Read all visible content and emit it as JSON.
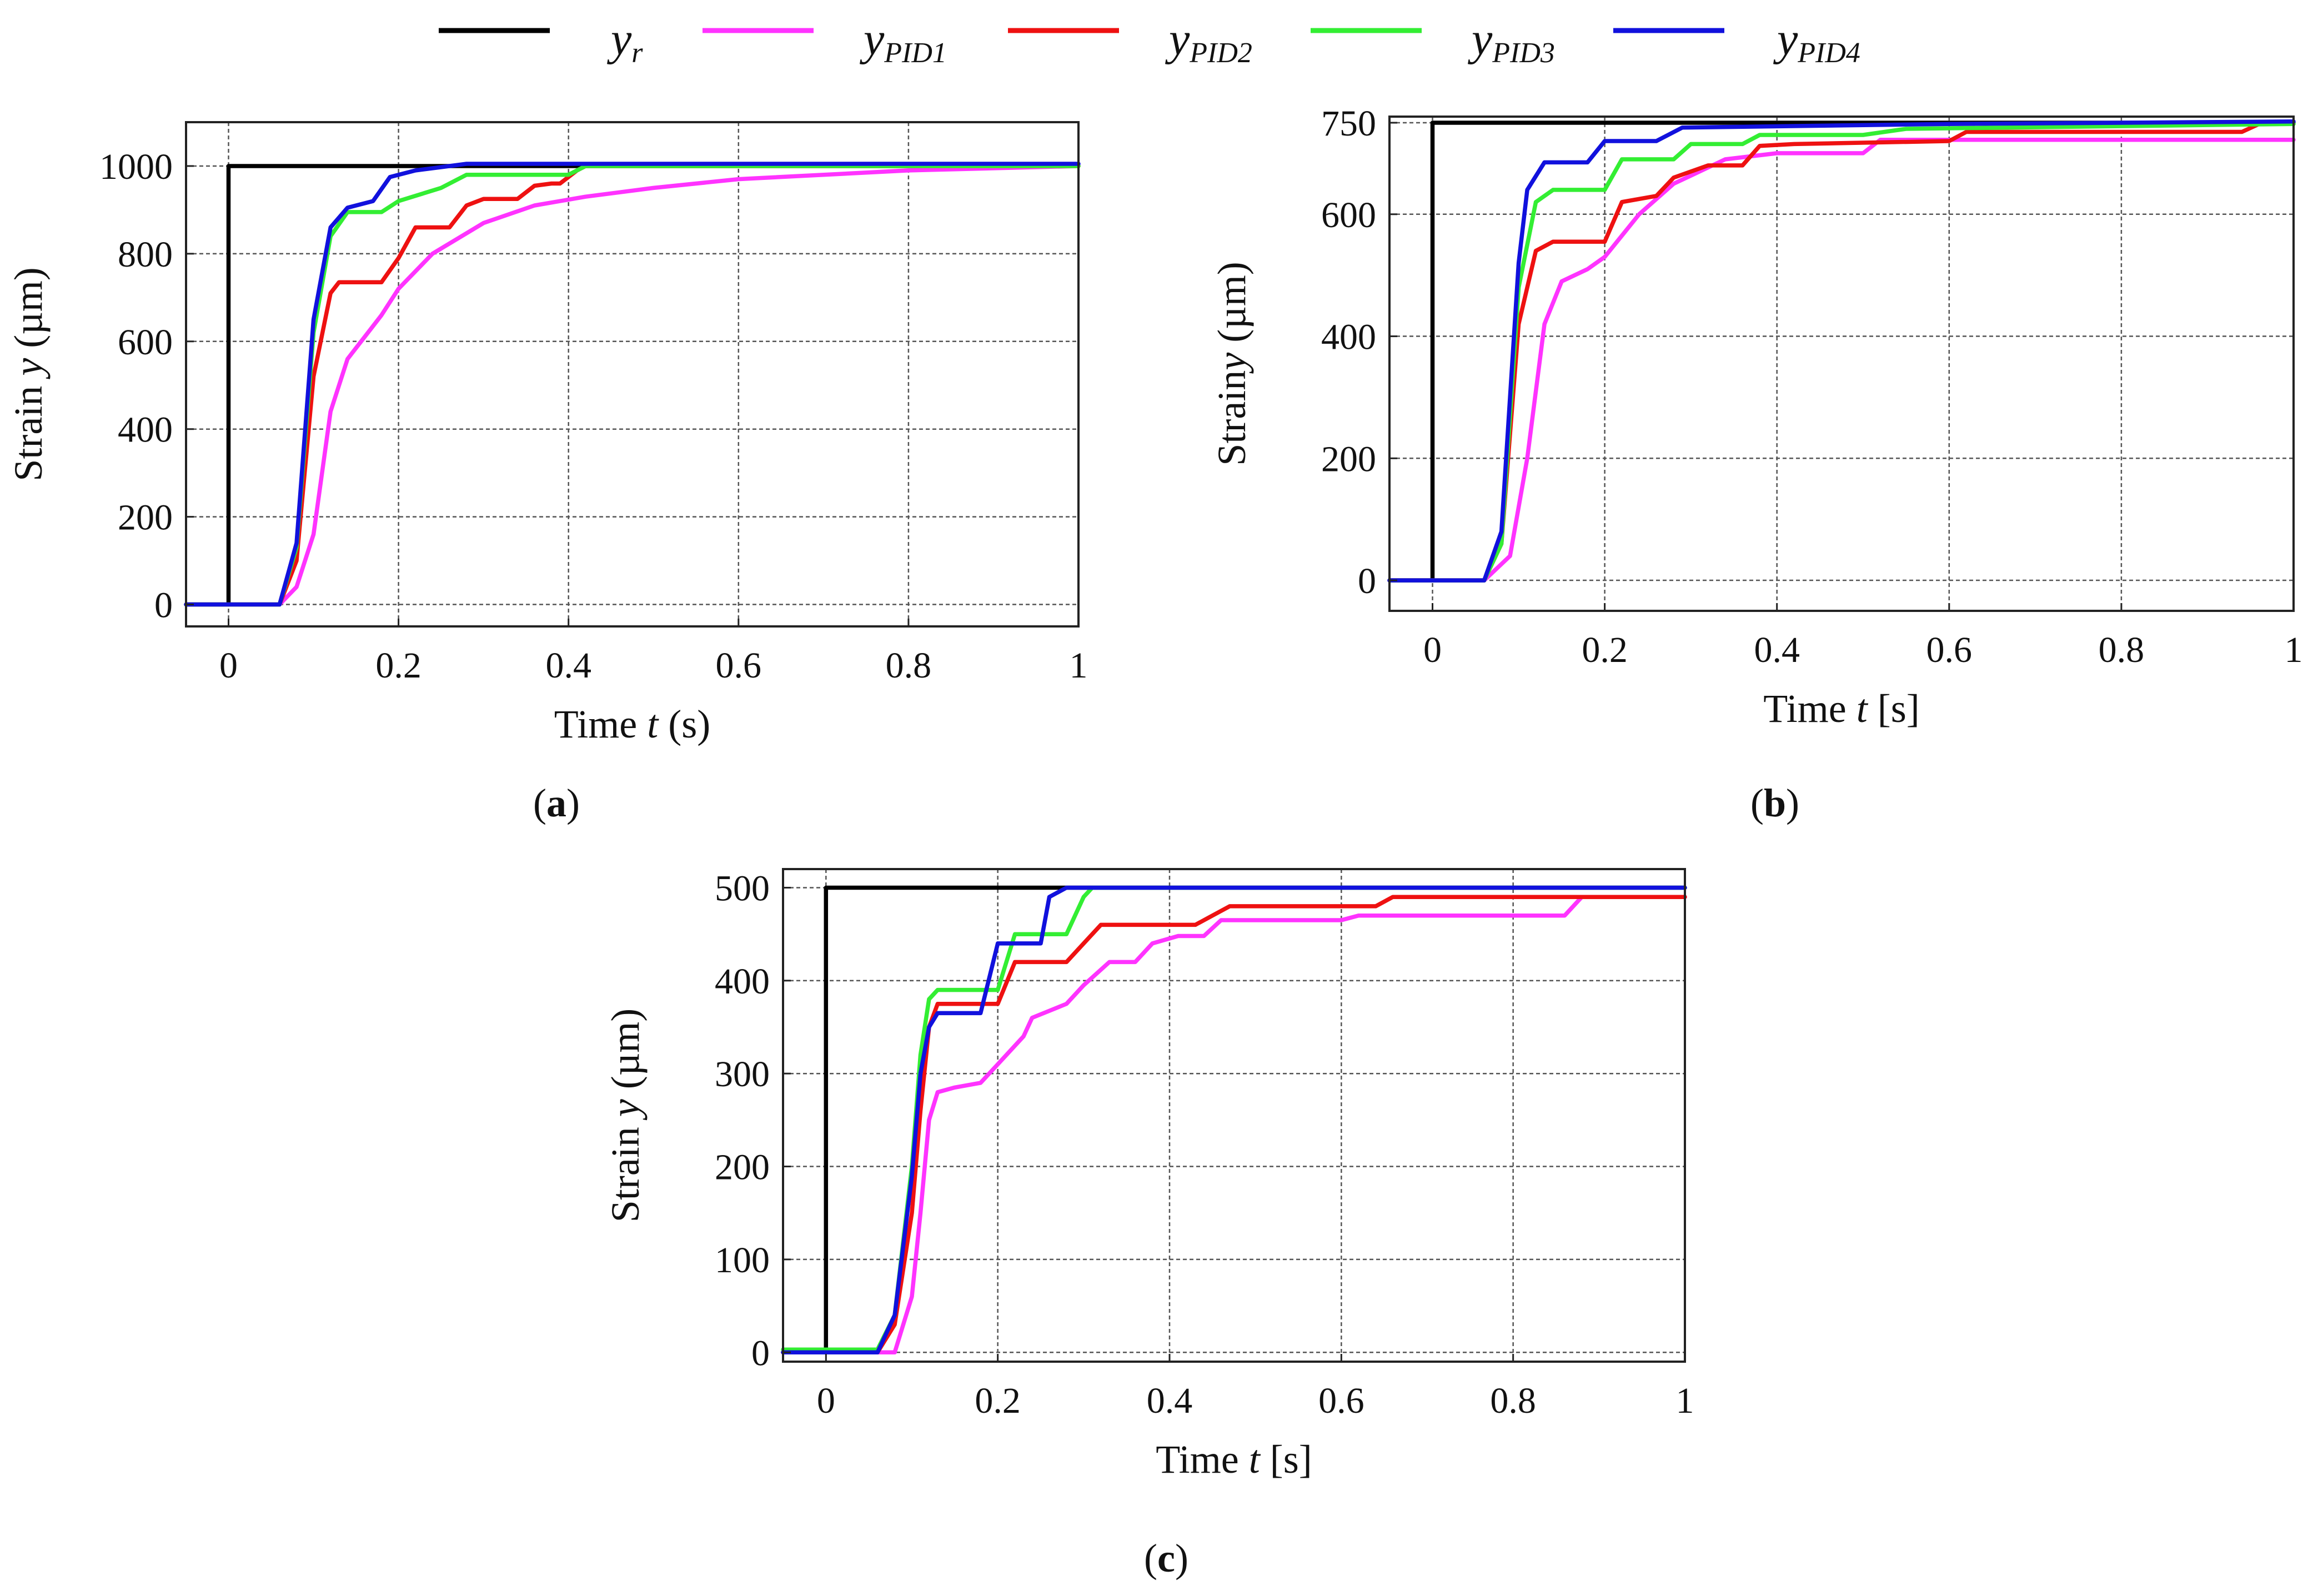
{
  "legend": [
    {
      "base": "y",
      "sub": "r",
      "color": "#000000"
    },
    {
      "base": "y",
      "sub": "PID1",
      "color": "#ff33ff"
    },
    {
      "base": "y",
      "sub": "PID2",
      "color": "#ee1111"
    },
    {
      "base": "y",
      "sub": "PID3",
      "color": "#33ee33"
    },
    {
      "base": "y",
      "sub": "PID4",
      "color": "#1111dd"
    }
  ],
  "chart_data": [
    {
      "id": "a",
      "type": "line",
      "caption_open": "(",
      "caption_letter": "a",
      "caption_close": ")",
      "xlabel_pre": "Time ",
      "xlabel_var": "t",
      "xlabel_unit": " (s)",
      "ylabel_pre": "Strain ",
      "ylabel_var": "y",
      "ylabel_unit": " (µm)",
      "xlim": [
        -0.05,
        1
      ],
      "ylim": [
        -50,
        1100
      ],
      "xticks": [
        0,
        0.2,
        0.4,
        0.6,
        0.8,
        1
      ],
      "xtick_labels": [
        "0",
        "0.2",
        "0.4",
        "0.6",
        "0.8",
        "1"
      ],
      "yticks": [
        0,
        200,
        400,
        600,
        800,
        1000
      ],
      "ytick_labels": [
        "0",
        "200",
        "400",
        "600",
        "800",
        "1000"
      ],
      "series": [
        {
          "name": "yr",
          "color": "#000000",
          "x": [
            -0.05,
            0,
            0,
            1
          ],
          "y": [
            0,
            0,
            1000,
            1000
          ]
        },
        {
          "name": "yPID1",
          "color": "#ff33ff",
          "x": [
            -0.05,
            0.06,
            0.08,
            0.1,
            0.12,
            0.14,
            0.16,
            0.18,
            0.2,
            0.24,
            0.3,
            0.36,
            0.42,
            0.5,
            0.6,
            0.8,
            1
          ],
          "y": [
            0,
            0,
            40,
            160,
            440,
            560,
            610,
            660,
            720,
            800,
            870,
            910,
            930,
            950,
            970,
            990,
            1000
          ]
        },
        {
          "name": "yPID2",
          "color": "#ee1111",
          "x": [
            -0.05,
            0.06,
            0.08,
            0.1,
            0.12,
            0.13,
            0.18,
            0.2,
            0.22,
            0.26,
            0.28,
            0.3,
            0.34,
            0.36,
            0.38,
            0.39,
            0.41,
            0.42,
            1
          ],
          "y": [
            0,
            0,
            100,
            520,
            710,
            735,
            735,
            790,
            860,
            860,
            910,
            925,
            925,
            955,
            960,
            960,
            990,
            1000,
            1000
          ]
        },
        {
          "name": "yPID3",
          "color": "#33ee33",
          "x": [
            -0.05,
            0.06,
            0.08,
            0.1,
            0.12,
            0.14,
            0.18,
            0.2,
            0.25,
            0.28,
            0.3,
            0.4,
            0.42,
            1
          ],
          "y": [
            0,
            0,
            130,
            620,
            840,
            895,
            895,
            920,
            950,
            980,
            980,
            980,
            1000,
            1000
          ]
        },
        {
          "name": "yPID4",
          "color": "#1111dd",
          "x": [
            -0.05,
            0.06,
            0.08,
            0.1,
            0.12,
            0.14,
            0.17,
            0.19,
            0.22,
            0.26,
            0.28,
            1
          ],
          "y": [
            0,
            0,
            140,
            650,
            860,
            905,
            920,
            975,
            990,
            1000,
            1005,
            1005
          ]
        }
      ]
    },
    {
      "id": "b",
      "type": "line",
      "caption_open": "(",
      "caption_letter": "b",
      "caption_close": ")",
      "xlabel_pre": "Time ",
      "xlabel_var": "t",
      "xlabel_unit": " [s]",
      "ylabel_pre": "Strain",
      "ylabel_var": "y",
      "ylabel_unit": " (µm)",
      "xlim": [
        -0.05,
        1
      ],
      "ylim": [
        -50,
        760
      ],
      "xticks": [
        0,
        0.2,
        0.4,
        0.6,
        0.8,
        1
      ],
      "xtick_labels": [
        "0",
        "0.2",
        "0.4",
        "0.6",
        "0.8",
        "1"
      ],
      "yticks": [
        0,
        200,
        400,
        600,
        750
      ],
      "ytick_labels": [
        "0",
        "200",
        "400",
        "600",
        "750"
      ],
      "series": [
        {
          "name": "yr",
          "color": "#000000",
          "x": [
            -0.05,
            0,
            0,
            1
          ],
          "y": [
            0,
            0,
            750,
            750
          ]
        },
        {
          "name": "yPID1",
          "color": "#ff33ff",
          "x": [
            -0.05,
            0.06,
            0.09,
            0.11,
            0.13,
            0.15,
            0.18,
            0.2,
            0.24,
            0.28,
            0.34,
            0.4,
            0.5,
            0.52,
            1
          ],
          "y": [
            0,
            0,
            40,
            200,
            420,
            490,
            510,
            530,
            600,
            650,
            690,
            700,
            700,
            722,
            722
          ]
        },
        {
          "name": "yPID2",
          "color": "#ee1111",
          "x": [
            -0.05,
            0.06,
            0.08,
            0.1,
            0.12,
            0.14,
            0.2,
            0.22,
            0.26,
            0.28,
            0.32,
            0.36,
            0.38,
            0.42,
            0.6,
            0.62,
            0.94,
            0.96,
            1
          ],
          "y": [
            0,
            0,
            60,
            420,
            540,
            555,
            555,
            620,
            630,
            660,
            680,
            680,
            712,
            715,
            720,
            735,
            735,
            748,
            748
          ]
        },
        {
          "name": "yPID3",
          "color": "#33ee33",
          "x": [
            -0.05,
            0.06,
            0.08,
            0.1,
            0.12,
            0.14,
            0.2,
            0.22,
            0.28,
            0.3,
            0.36,
            0.38,
            0.5,
            0.55,
            1
          ],
          "y": [
            0,
            0,
            60,
            480,
            620,
            640,
            640,
            690,
            690,
            715,
            715,
            730,
            730,
            740,
            748
          ]
        },
        {
          "name": "yPID4",
          "color": "#1111dd",
          "x": [
            -0.05,
            0.06,
            0.08,
            0.1,
            0.11,
            0.13,
            0.18,
            0.2,
            0.26,
            0.29,
            0.6,
            1
          ],
          "y": [
            0,
            0,
            80,
            520,
            640,
            685,
            685,
            720,
            720,
            742,
            748,
            752
          ]
        }
      ]
    },
    {
      "id": "c",
      "type": "line",
      "caption_open": "(",
      "caption_letter": "c",
      "caption_close": ")",
      "xlabel_pre": "Time ",
      "xlabel_var": "t",
      "xlabel_unit": " [s]",
      "ylabel_pre": "Strain ",
      "ylabel_var": "y",
      "ylabel_unit": " (µm)",
      "xlim": [
        -0.05,
        1
      ],
      "ylim": [
        -10,
        520
      ],
      "xticks": [
        0,
        0.2,
        0.4,
        0.6,
        0.8,
        1
      ],
      "xtick_labels": [
        "0",
        "0.2",
        "0.4",
        "0.6",
        "0.8",
        "1"
      ],
      "yticks": [
        0,
        100,
        200,
        300,
        400,
        500
      ],
      "ytick_labels": [
        "0",
        "100",
        "200",
        "300",
        "400",
        "500"
      ],
      "series": [
        {
          "name": "yr",
          "color": "#000000",
          "x": [
            -0.05,
            0,
            0,
            1
          ],
          "y": [
            0,
            0,
            500,
            500
          ]
        },
        {
          "name": "yPID1",
          "color": "#ff33ff",
          "x": [
            -0.05,
            0.08,
            0.1,
            0.11,
            0.12,
            0.13,
            0.15,
            0.18,
            0.2,
            0.23,
            0.24,
            0.28,
            0.3,
            0.33,
            0.36,
            0.38,
            0.41,
            0.44,
            0.46,
            0.48,
            0.6,
            0.62,
            0.86,
            0.88,
            1
          ],
          "y": [
            0,
            0,
            60,
            150,
            250,
            280,
            285,
            290,
            310,
            340,
            360,
            375,
            395,
            420,
            420,
            440,
            448,
            448,
            465,
            465,
            465,
            470,
            470,
            490,
            490
          ]
        },
        {
          "name": "yPID2",
          "color": "#ee1111",
          "x": [
            -0.05,
            0.06,
            0.08,
            0.1,
            0.11,
            0.12,
            0.13,
            0.2,
            0.22,
            0.28,
            0.3,
            0.32,
            0.34,
            0.43,
            0.45,
            0.47,
            0.64,
            0.66,
            1
          ],
          "y": [
            0,
            0,
            30,
            150,
            260,
            350,
            375,
            375,
            420,
            420,
            440,
            460,
            460,
            460,
            470,
            480,
            480,
            490,
            490
          ]
        },
        {
          "name": "yPID3",
          "color": "#33ee33",
          "x": [
            -0.05,
            0.06,
            0.08,
            0.1,
            0.11,
            0.12,
            0.13,
            0.2,
            0.22,
            0.28,
            0.3,
            0.31,
            1
          ],
          "y": [
            3,
            3,
            40,
            200,
            320,
            380,
            390,
            390,
            450,
            450,
            490,
            500,
            500
          ]
        },
        {
          "name": "yPID4",
          "color": "#1111dd",
          "x": [
            -0.05,
            0.06,
            0.08,
            0.1,
            0.11,
            0.12,
            0.13,
            0.18,
            0.2,
            0.25,
            0.26,
            0.28,
            1
          ],
          "y": [
            0,
            0,
            40,
            190,
            300,
            350,
            365,
            365,
            440,
            440,
            490,
            500,
            500
          ]
        }
      ]
    }
  ]
}
